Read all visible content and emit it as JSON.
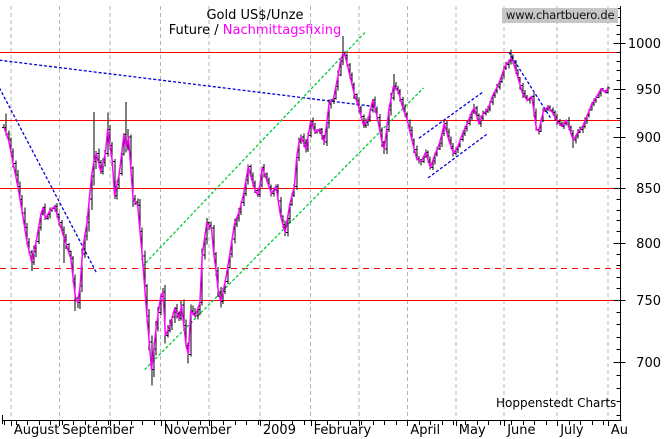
{
  "header": {
    "title": "Gold US$/Unze",
    "subtitle_prefix": "Future / ",
    "subtitle_series": "Nachmittagsfixing",
    "watermark": "www.chartbuero.de",
    "credit": "Hoppenstedt Charts"
  },
  "colors": {
    "future_bars": "#000000",
    "fixing_line": "#ff00ff",
    "level_lines": "#ff0000",
    "trend_blue": "#0000dd",
    "trend_green": "#00cc33",
    "grid": "#b3b3b3",
    "axis": "#000000",
    "watermark_bg": "#c6c6c6"
  },
  "chart_data": {
    "type": "ohlc",
    "title": "Gold US$/Unze",
    "series": [
      {
        "name": "Future",
        "style": "ohlc-bars",
        "color": "#000000"
      },
      {
        "name": "Nachmittagsfixing",
        "style": "line",
        "color": "#ff00ff"
      }
    ],
    "y_axis": {
      "scale": "log",
      "unit": "US$/Unze",
      "major_ticks": [
        1000,
        950,
        900,
        850,
        800,
        750,
        700
      ],
      "minor_step": 10,
      "minor_range": [
        660,
        1040
      ]
    },
    "x_axis": {
      "minor_tick_days": 5,
      "months": [
        {
          "label": "August",
          "d": 3
        },
        {
          "label": "September",
          "d": 24
        },
        {
          "label": "",
          "d": 46
        },
        {
          "label": "November",
          "d": 68
        },
        {
          "label": "",
          "d": 89
        },
        {
          "label": "2009",
          "d": 111
        },
        {
          "label": "February",
          "d": 133
        },
        {
          "label": "",
          "d": 154
        },
        {
          "label": "April",
          "d": 175
        },
        {
          "label": "May",
          "d": 196
        },
        {
          "label": "June",
          "d": 217
        },
        {
          "label": "July",
          "d": 240
        },
        {
          "label": "Au",
          "d": 262
        }
      ]
    },
    "levels": [
      {
        "price": 990,
        "style": "solid"
      },
      {
        "price": 917,
        "style": "solid"
      },
      {
        "price": 850,
        "style": "solid"
      },
      {
        "price": 778,
        "style": "dashed"
      },
      {
        "price": 750,
        "style": "solid"
      }
    ],
    "trend_lines": [
      {
        "color": "blue",
        "d1": -2,
        "p1": 981,
        "d2": 162,
        "p2": 931
      },
      {
        "color": "blue",
        "d1": -2,
        "p1": 951,
        "d2": 40,
        "p2": 774
      },
      {
        "color": "blue",
        "d1": 180,
        "p1": 899,
        "d2": 208,
        "p2": 947
      },
      {
        "color": "blue",
        "d1": 184,
        "p1": 860,
        "d2": 210,
        "p2": 904
      },
      {
        "color": "blue",
        "d1": 219,
        "p1": 990,
        "d2": 237,
        "p2": 920
      },
      {
        "color": "green",
        "d1": 60,
        "p1": 779,
        "d2": 157,
        "p2": 1013
      },
      {
        "color": "green",
        "d1": 61,
        "p1": 694,
        "d2": 182,
        "p2": 951
      }
    ],
    "days": 262,
    "fixing_anchors": [
      [
        0,
        910,
        0.9
      ],
      [
        2,
        897,
        0.9
      ],
      [
        4,
        874,
        1.0
      ],
      [
        6,
        852,
        1.1
      ],
      [
        8,
        827,
        1.2
      ],
      [
        10,
        800,
        1.4
      ],
      [
        12,
        783,
        1.5
      ],
      [
        14,
        801,
        1.3
      ],
      [
        16,
        826,
        1.2
      ],
      [
        17,
        832,
        1.0
      ],
      [
        18,
        822,
        0.9
      ],
      [
        20,
        829,
        0.9
      ],
      [
        22,
        833,
        0.9
      ],
      [
        24,
        818,
        1.0
      ],
      [
        26,
        805,
        1.1
      ],
      [
        28,
        792,
        1.2
      ],
      [
        29,
        786,
        1.2
      ],
      [
        30,
        768,
        1.4
      ],
      [
        31,
        752,
        1.5
      ],
      [
        32,
        748,
        1.5
      ],
      [
        33,
        762,
        1.4
      ],
      [
        34,
        790,
        1.5
      ],
      [
        35,
        806,
        1.4
      ],
      [
        36,
        818,
        1.5
      ],
      [
        38,
        862,
        2.6
      ],
      [
        39,
        876,
        2.2
      ],
      [
        40,
        884,
        1.8
      ],
      [
        42,
        866,
        1.5
      ],
      [
        44,
        884,
        1.4
      ],
      [
        45,
        908,
        1.6
      ],
      [
        47,
        876,
        1.4
      ],
      [
        48,
        843,
        1.5
      ],
      [
        50,
        864,
        1.5
      ],
      [
        52,
        903,
        1.7
      ],
      [
        53,
        890,
        1.7
      ],
      [
        54,
        900,
        1.9
      ],
      [
        56,
        840,
        1.8
      ],
      [
        58,
        834,
        1.5
      ],
      [
        59,
        810,
        1.6
      ],
      [
        60,
        788,
        1.6
      ],
      [
        61,
        762,
        1.7
      ],
      [
        62,
        737,
        1.8
      ],
      [
        63,
        716,
        1.9
      ],
      [
        64,
        694,
        2.0
      ],
      [
        66,
        727,
        1.8
      ],
      [
        68,
        753,
        1.6
      ],
      [
        69,
        757,
        1.5
      ],
      [
        70,
        721,
        1.8
      ],
      [
        72,
        729,
        1.5
      ],
      [
        74,
        743,
        1.4
      ],
      [
        76,
        735,
        1.3
      ],
      [
        77,
        746,
        1.3
      ],
      [
        79,
        713,
        1.5
      ],
      [
        80,
        706,
        1.6
      ],
      [
        81,
        741,
        1.6
      ],
      [
        83,
        737,
        1.2
      ],
      [
        85,
        748,
        1.3
      ],
      [
        86,
        789,
        1.8
      ],
      [
        88,
        818,
        1.4
      ],
      [
        90,
        813,
        1.1
      ],
      [
        91,
        790,
        1.3
      ],
      [
        92,
        775,
        1.2
      ],
      [
        93,
        757,
        1.2
      ],
      [
        94,
        749,
        1.2
      ],
      [
        96,
        766,
        1.1
      ],
      [
        98,
        790,
        1.2
      ],
      [
        100,
        817,
        1.3
      ],
      [
        102,
        828,
        1.1
      ],
      [
        104,
        845,
        1.1
      ],
      [
        106,
        871,
        1.1
      ],
      [
        107,
        862,
        1.0
      ],
      [
        109,
        848,
        0.9
      ],
      [
        110,
        844,
        0.9
      ],
      [
        111,
        853,
        0.9
      ],
      [
        112,
        870,
        0.9
      ],
      [
        114,
        858,
        0.9
      ],
      [
        116,
        845,
        1.0
      ],
      [
        118,
        852,
        1.0
      ],
      [
        120,
        824,
        1.1
      ],
      [
        122,
        809,
        1.0
      ],
      [
        124,
        835,
        1.1
      ],
      [
        126,
        852,
        1.0
      ],
      [
        127,
        880,
        1.2
      ],
      [
        128,
        895,
        1.2
      ],
      [
        129,
        900,
        1.1
      ],
      [
        131,
        888,
        1.0
      ],
      [
        133,
        916,
        1.2
      ],
      [
        135,
        905,
        1.0
      ],
      [
        137,
        908,
        0.9
      ],
      [
        139,
        895,
        1.0
      ],
      [
        141,
        934,
        1.3
      ],
      [
        143,
        940,
        1.0
      ],
      [
        145,
        965,
        1.1
      ],
      [
        146,
        980,
        1.0
      ],
      [
        147,
        988,
        1.0
      ],
      [
        148,
        986,
        1.0
      ],
      [
        150,
        965,
        1.2
      ],
      [
        152,
        944,
        1.1
      ],
      [
        154,
        930,
        1.1
      ],
      [
        156,
        912,
        1.1
      ],
      [
        158,
        918,
        1.1
      ],
      [
        160,
        938,
        1.1
      ],
      [
        162,
        920,
        1.0
      ],
      [
        164,
        895,
        1.2
      ],
      [
        165,
        888,
        1.2
      ],
      [
        167,
        928,
        1.5
      ],
      [
        169,
        953,
        1.5
      ],
      [
        171,
        948,
        1.0
      ],
      [
        173,
        930,
        1.0
      ],
      [
        175,
        917,
        0.9
      ],
      [
        177,
        897,
        1.0
      ],
      [
        179,
        879,
        1.0
      ],
      [
        181,
        876,
        0.9
      ],
      [
        183,
        885,
        0.9
      ],
      [
        185,
        870,
        0.9
      ],
      [
        187,
        883,
        0.8
      ],
      [
        189,
        894,
        0.9
      ],
      [
        191,
        914,
        0.9
      ],
      [
        193,
        897,
        0.9
      ],
      [
        195,
        884,
        0.9
      ],
      [
        197,
        891,
        0.8
      ],
      [
        199,
        904,
        0.8
      ],
      [
        201,
        914,
        0.9
      ],
      [
        203,
        926,
        0.9
      ],
      [
        204,
        930,
        0.9
      ],
      [
        206,
        914,
        0.9
      ],
      [
        208,
        924,
        0.8
      ],
      [
        210,
        929,
        0.8
      ],
      [
        212,
        943,
        0.9
      ],
      [
        214,
        952,
        0.8
      ],
      [
        215,
        958,
        0.8
      ],
      [
        217,
        972,
        0.9
      ],
      [
        219,
        980,
        0.9
      ],
      [
        220,
        983,
        0.9
      ],
      [
        221,
        978,
        0.9
      ],
      [
        222,
        970,
        0.9
      ],
      [
        223,
        962,
        0.9
      ],
      [
        225,
        945,
        1.0
      ],
      [
        227,
        938,
        0.9
      ],
      [
        229,
        942,
        0.8
      ],
      [
        231,
        908,
        1.1
      ],
      [
        232,
        906,
        1.0
      ],
      [
        234,
        927,
        0.9
      ],
      [
        236,
        931,
        0.8
      ],
      [
        238,
        925,
        0.8
      ],
      [
        240,
        916,
        0.9
      ],
      [
        242,
        911,
        0.8
      ],
      [
        244,
        917,
        0.7
      ],
      [
        246,
        904,
        0.9
      ],
      [
        247,
        897,
        0.9
      ],
      [
        249,
        905,
        0.9
      ],
      [
        251,
        911,
        0.8
      ],
      [
        253,
        922,
        0.8
      ],
      [
        255,
        934,
        0.8
      ],
      [
        257,
        941,
        0.7
      ],
      [
        259,
        950,
        0.8
      ],
      [
        261,
        946,
        0.7
      ],
      [
        262,
        951,
        0.8
      ]
    ],
    "spikes": [
      {
        "d": 1,
        "hi": 924
      },
      {
        "d": 12,
        "lo": 775
      },
      {
        "d": 26,
        "lo": 782
      },
      {
        "d": 31,
        "lo": 741
      },
      {
        "d": 39,
        "hi": 926
      },
      {
        "d": 45,
        "hi": 925
      },
      {
        "d": 53,
        "hi": 936
      },
      {
        "d": 64,
        "lo": 682
      },
      {
        "d": 80,
        "lo": 699
      },
      {
        "d": 94,
        "lo": 744
      },
      {
        "d": 147,
        "hi": 1008
      },
      {
        "d": 169,
        "hi": 966
      },
      {
        "d": 220,
        "hi": 993
      },
      {
        "d": 247,
        "lo": 889
      }
    ]
  }
}
